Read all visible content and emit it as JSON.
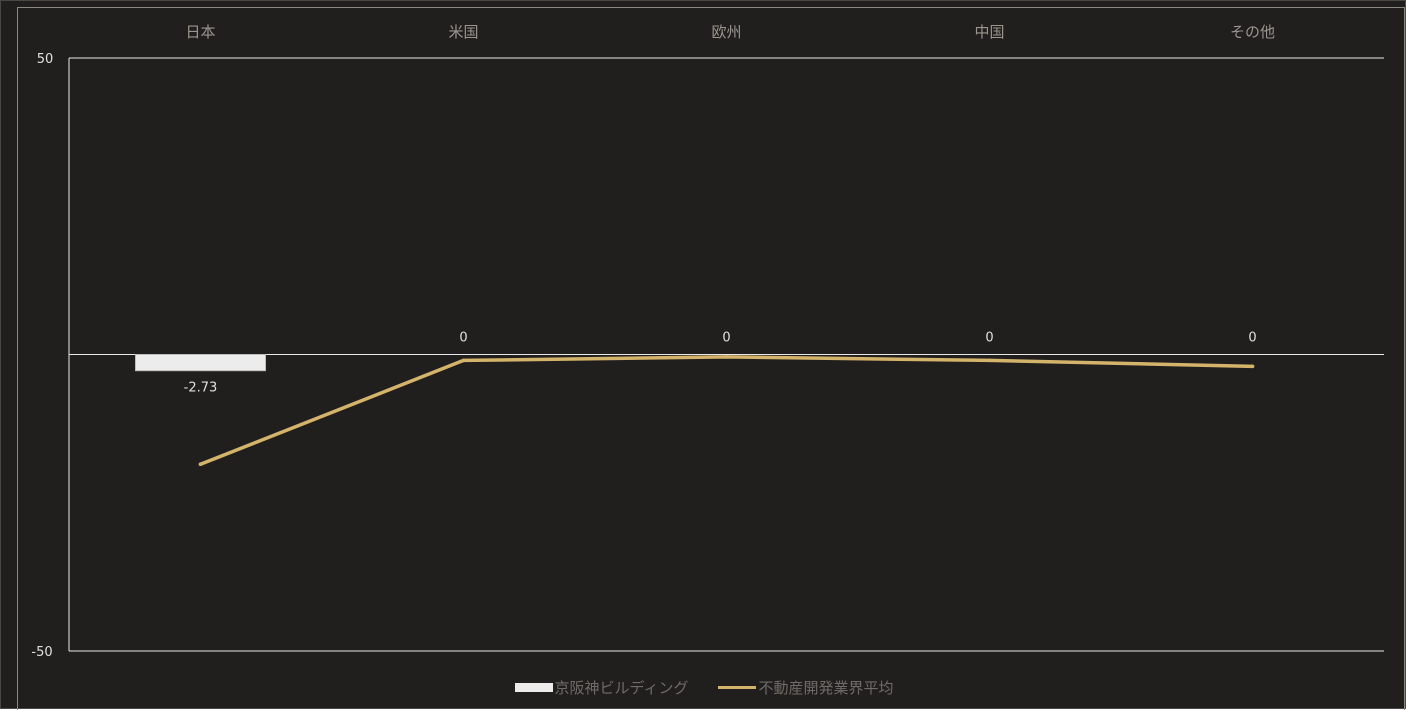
{
  "chart_data": {
    "type": "bar",
    "categories": [
      "日本",
      "米国",
      "欧州",
      "中国",
      "その他"
    ],
    "ylim": [
      -50,
      50
    ],
    "yticks": [
      "50",
      "-50"
    ],
    "grid": false,
    "legend_position": "bottom",
    "series": [
      {
        "name": "京阪神ビルディング",
        "type": "bar",
        "values": [
          -2.73,
          0,
          0,
          0,
          0
        ],
        "labels": [
          "-2.73",
          "0",
          "0",
          "0",
          "0"
        ],
        "color": "#ececec"
      },
      {
        "name": "不動産開発業界平均",
        "type": "line",
        "values": [
          -18.5,
          -1.0,
          -0.4,
          -1.0,
          -2.0
        ],
        "color": "#d4b36a"
      }
    ]
  },
  "colors": {
    "background": "#211f1d",
    "axis": "#e8e8e8",
    "text": "#9a968f",
    "tick_text": "#e0e0e0"
  }
}
